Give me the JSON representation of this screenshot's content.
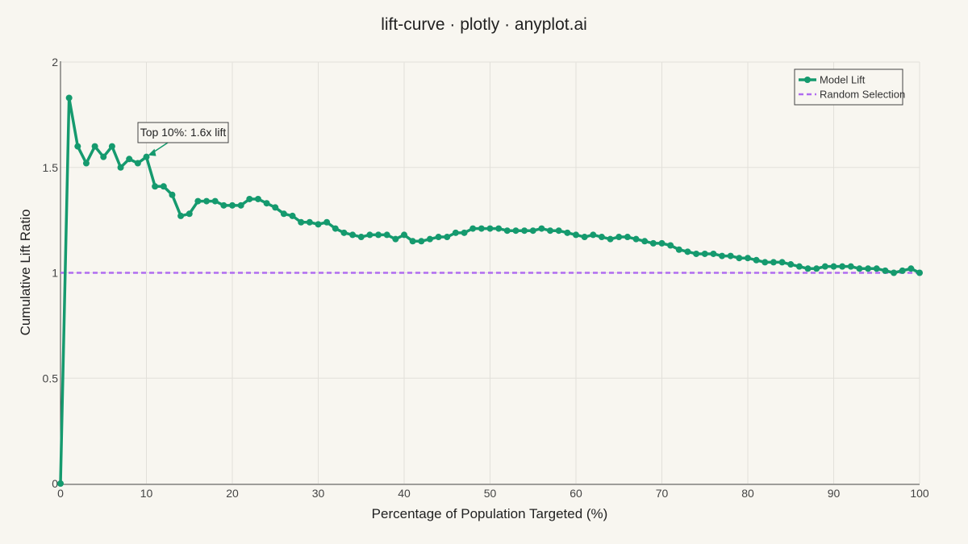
{
  "chart_data": {
    "type": "line",
    "title": "lift-curve · plotly · anyplot.ai",
    "xlabel": "Percentage of Population Targeted (%)",
    "ylabel": "Cumulative Lift Ratio",
    "xlim": [
      0,
      100
    ],
    "ylim": [
      0,
      2
    ],
    "x_ticks": [
      "0",
      "10",
      "20",
      "30",
      "40",
      "50",
      "60",
      "70",
      "80",
      "90",
      "100"
    ],
    "y_ticks": [
      "0",
      "0.5",
      "1",
      "1.5",
      "2"
    ],
    "x_tick_values": [
      0,
      10,
      20,
      30,
      40,
      50,
      60,
      70,
      80,
      90,
      100
    ],
    "y_tick_values": [
      0,
      0.5,
      1,
      1.5,
      2
    ],
    "grid": true,
    "legend_position": "top-right",
    "series": [
      {
        "name": "Model Lift",
        "color": "#159a6e",
        "style": "lines+markers",
        "x": [
          0,
          1,
          2,
          3,
          4,
          5,
          6,
          7,
          8,
          9,
          10,
          11,
          12,
          13,
          14,
          15,
          16,
          17,
          18,
          19,
          20,
          21,
          22,
          23,
          24,
          25,
          26,
          27,
          28,
          29,
          30,
          31,
          32,
          33,
          34,
          35,
          36,
          37,
          38,
          39,
          40,
          41,
          42,
          43,
          44,
          45,
          46,
          47,
          48,
          49,
          50,
          51,
          52,
          53,
          54,
          55,
          56,
          57,
          58,
          59,
          60,
          61,
          62,
          63,
          64,
          65,
          66,
          67,
          68,
          69,
          70,
          71,
          72,
          73,
          74,
          75,
          76,
          77,
          78,
          79,
          80,
          81,
          82,
          83,
          84,
          85,
          86,
          87,
          88,
          89,
          90,
          91,
          92,
          93,
          94,
          95,
          96,
          97,
          98,
          99,
          100
        ],
        "y": [
          0,
          1.83,
          1.6,
          1.52,
          1.6,
          1.55,
          1.6,
          1.5,
          1.54,
          1.52,
          1.55,
          1.41,
          1.41,
          1.37,
          1.27,
          1.28,
          1.34,
          1.34,
          1.34,
          1.32,
          1.32,
          1.32,
          1.35,
          1.35,
          1.33,
          1.31,
          1.28,
          1.27,
          1.24,
          1.24,
          1.23,
          1.24,
          1.21,
          1.19,
          1.18,
          1.17,
          1.18,
          1.18,
          1.18,
          1.16,
          1.18,
          1.15,
          1.15,
          1.16,
          1.17,
          1.17,
          1.19,
          1.19,
          1.21,
          1.21,
          1.21,
          1.21,
          1.2,
          1.2,
          1.2,
          1.2,
          1.21,
          1.2,
          1.2,
          1.19,
          1.18,
          1.17,
          1.18,
          1.17,
          1.16,
          1.17,
          1.17,
          1.16,
          1.15,
          1.14,
          1.14,
          1.13,
          1.11,
          1.1,
          1.09,
          1.09,
          1.09,
          1.08,
          1.08,
          1.07,
          1.07,
          1.06,
          1.05,
          1.05,
          1.05,
          1.04,
          1.03,
          1.02,
          1.02,
          1.03,
          1.03,
          1.03,
          1.03,
          1.02,
          1.02,
          1.02,
          1.01,
          1.0,
          1.01,
          1.02,
          1.0
        ]
      },
      {
        "name": "Random Selection",
        "color": "#b06cf0",
        "style": "dashed",
        "x": [
          0,
          100
        ],
        "y": [
          1,
          1
        ]
      }
    ],
    "annotations": [
      {
        "text": "Top 10%: 1.6x lift",
        "x": 10,
        "y": 1.55
      }
    ]
  }
}
